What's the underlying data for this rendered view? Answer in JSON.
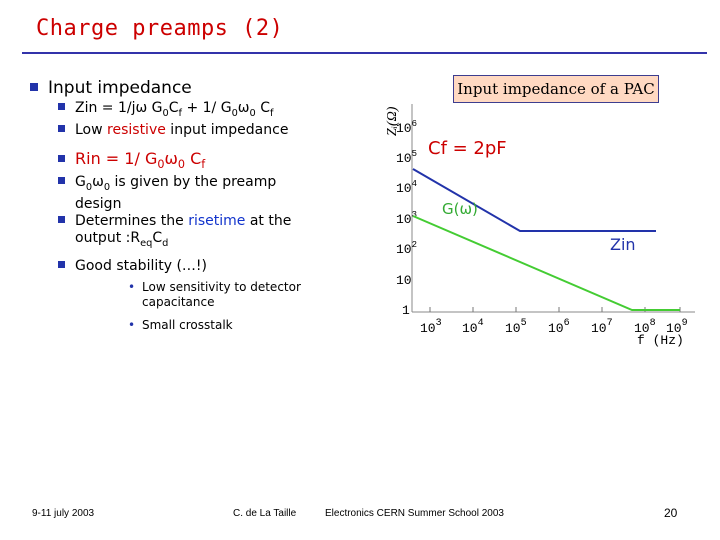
{
  "slide": {
    "title": "Charge preamps (2)",
    "main_bullet": "Input impedance",
    "bullets": [
      {
        "parts": [
          {
            "t": "Zin = 1/jω G"
          },
          {
            "t": "0",
            "sub": true
          },
          {
            "t": "C"
          },
          {
            "t": "f",
            "sub": true
          },
          {
            "t": " + 1/ G"
          },
          {
            "t": "0",
            "sub": true
          },
          {
            "t": "ω"
          },
          {
            "t": "0",
            "sub": true
          },
          {
            "t": " C"
          },
          {
            "t": "f",
            "sub": true
          }
        ]
      },
      {
        "parts": [
          {
            "t": "Low "
          },
          {
            "t": "resistive",
            "cls": "hl-red"
          },
          {
            "t": " input impedance"
          }
        ]
      },
      {
        "parts": [
          {
            "t": "Rin = 1/ G",
            "cls": "hl-red"
          },
          {
            "t": "0",
            "sub": true,
            "cls": "hl-red"
          },
          {
            "t": "ω",
            "cls": "hl-red"
          },
          {
            "t": "0",
            "sub": true,
            "cls": "hl-red"
          },
          {
            "t": " C",
            "cls": "hl-red"
          },
          {
            "t": "f",
            "sub": true,
            "cls": "hl-red"
          }
        ]
      },
      {
        "parts": [
          {
            "t": "G"
          },
          {
            "t": "0",
            "sub": true
          },
          {
            "t": "ω"
          },
          {
            "t": "0",
            "sub": true
          },
          {
            "t": " is given by the preamp design"
          }
        ]
      },
      {
        "parts": [
          {
            "t": "Determines the "
          },
          {
            "t": "risetime",
            "cls": "hl-blue"
          },
          {
            "t": " at the output :R"
          },
          {
            "t": "eq",
            "sub": true
          },
          {
            "t": "C"
          },
          {
            "t": "d",
            "sub": true
          }
        ]
      },
      {
        "parts": [
          {
            "t": "Good stability (…!)"
          }
        ]
      }
    ],
    "sub_bullets": [
      "Low sensitivity to detector capacitance",
      "Small crosstalk"
    ]
  },
  "figure": {
    "caption": "Input impedance of a PAC",
    "y_label": "Zᵢ(Ω)",
    "x_label": "f (Hz)",
    "y_ticks": [
      "10",
      "10",
      "10",
      "10",
      "10",
      "1"
    ],
    "y_tick_exps": [
      "6",
      "5",
      "4",
      "3",
      "2",
      ""
    ],
    "x_ticks": [
      "10",
      "10",
      "10",
      "10",
      "10",
      "10",
      "10"
    ],
    "x_tick_exps": [
      "3",
      "4",
      "5",
      "6",
      "7",
      "8",
      "9"
    ],
    "annotation_cf": "Cf = 2pF",
    "annotation_g": "G(ω)",
    "annotation_zin": "Zin",
    "colors": {
      "zin_line": "#2233aa",
      "g_line": "#44cc33",
      "cf_text": "#cc0000",
      "zin_text": "#2233aa",
      "g_text": "#33aa33"
    }
  },
  "footer": {
    "date": "9-11 july 2003",
    "author": "C. de La Taille",
    "event": "Electronics CERN Summer School 2003",
    "page": "20"
  }
}
